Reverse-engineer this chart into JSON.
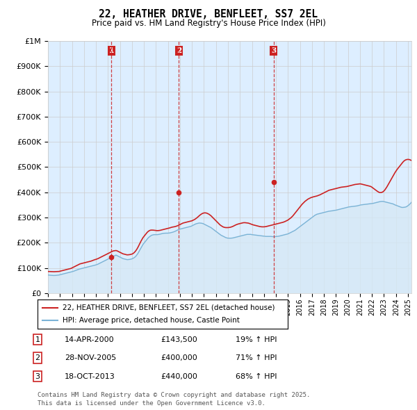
{
  "title": "22, HEATHER DRIVE, BENFLEET, SS7 2EL",
  "subtitle": "Price paid vs. HM Land Registry's House Price Index (HPI)",
  "footer": "Contains HM Land Registry data © Crown copyright and database right 2025.\nThis data is licensed under the Open Government Licence v3.0.",
  "legend_line1": "22, HEATHER DRIVE, BENFLEET, SS7 2EL (detached house)",
  "legend_line2": "HPI: Average price, detached house, Castle Point",
  "transactions": [
    {
      "num": 1,
      "date": "14-APR-2000",
      "price": "£143,500",
      "pct": "19% ↑ HPI"
    },
    {
      "num": 2,
      "date": "28-NOV-2005",
      "price": "£400,000",
      "pct": "71% ↑ HPI"
    },
    {
      "num": 3,
      "date": "18-OCT-2013",
      "price": "£440,000",
      "pct": "68% ↑ HPI"
    }
  ],
  "sale_dates": [
    2000.29,
    2005.91,
    2013.8
  ],
  "sale_prices": [
    143500,
    400000,
    440000
  ],
  "hpi_line_color": "#7ab3d6",
  "hpi_fill_color": "#d6e8f5",
  "price_line_color": "#cc2222",
  "vline_color": "#cc2222",
  "grid_color": "#cccccc",
  "bg_color": "#ffffff",
  "plot_bg_color": "#ddeeff",
  "ylim": [
    0,
    1000000
  ],
  "xlim_start": 1995.0,
  "xlim_end": 2025.3,
  "hpi_monthly": [
    72000,
    71500,
    71200,
    70800,
    70500,
    70200,
    70000,
    70200,
    70500,
    71000,
    71500,
    72000,
    73000,
    74000,
    75000,
    76000,
    77000,
    78000,
    79000,
    80000,
    81000,
    82000,
    83000,
    84000,
    85000,
    86000,
    87500,
    89000,
    90500,
    92000,
    93500,
    95000,
    96000,
    97000,
    98000,
    99000,
    100000,
    101000,
    102000,
    103000,
    104000,
    105000,
    106000,
    107000,
    108000,
    109000,
    110000,
    111000,
    112000,
    113500,
    115000,
    117000,
    119000,
    121000,
    123000,
    125000,
    127000,
    129000,
    131000,
    133000,
    135000,
    137000,
    139000,
    141000,
    143000,
    145000,
    147000,
    149000,
    151000,
    149000,
    147000,
    145000,
    143000,
    141000,
    139000,
    137000,
    136000,
    135000,
    134000,
    133000,
    133000,
    133500,
    134000,
    135000,
    136000,
    138000,
    140000,
    143000,
    147000,
    152000,
    158000,
    165000,
    172000,
    179000,
    186000,
    193000,
    198000,
    203000,
    208000,
    213000,
    218000,
    222000,
    225000,
    228000,
    230000,
    231000,
    232000,
    232000,
    232000,
    232000,
    232500,
    233000,
    234000,
    235000,
    236000,
    237000,
    237500,
    237800,
    238000,
    238000,
    238000,
    238500,
    239000,
    240000,
    241000,
    242000,
    243500,
    245000,
    247000,
    249000,
    251000,
    253000,
    254000,
    255000,
    256000,
    257000,
    258000,
    259000,
    260000,
    261000,
    262000,
    263000,
    264000,
    265000,
    267000,
    269000,
    271000,
    273000,
    275000,
    276000,
    277000,
    278000,
    278000,
    277500,
    277000,
    276000,
    274000,
    272000,
    270000,
    268000,
    266000,
    264000,
    262000,
    260000,
    257000,
    254000,
    251000,
    248000,
    245000,
    242000,
    239000,
    236000,
    233000,
    230000,
    228000,
    226000,
    224000,
    222000,
    220000,
    219000,
    218000,
    218000,
    218000,
    218000,
    218500,
    219000,
    220000,
    221000,
    222000,
    223000,
    224000,
    225000,
    226000,
    227000,
    228000,
    229000,
    230000,
    231000,
    232000,
    233000,
    233000,
    233000,
    233000,
    233000,
    232000,
    231500,
    231000,
    230500,
    230000,
    229500,
    229000,
    228500,
    228000,
    227500,
    227000,
    226500,
    226000,
    225500,
    225000,
    225000,
    225000,
    225000,
    225000,
    225000,
    224500,
    224000,
    224000,
    224000,
    224500,
    225000,
    225500,
    226000,
    227000,
    228000,
    229000,
    230000,
    231000,
    232000,
    233000,
    234000,
    235000,
    237000,
    239000,
    241000,
    243000,
    245000,
    247000,
    249000,
    252000,
    255000,
    258000,
    261000,
    264000,
    267000,
    270000,
    273000,
    276000,
    279000,
    282000,
    285000,
    288000,
    291000,
    294000,
    297000,
    300000,
    303000,
    306000,
    309000,
    311000,
    313000,
    314000,
    315000,
    316000,
    317000,
    318000,
    319000,
    320000,
    321000,
    322000,
    323000,
    324000,
    325000,
    325500,
    326000,
    326500,
    327000,
    328000,
    328500,
    329000,
    330000,
    331000,
    332000,
    333000,
    334000,
    335000,
    336000,
    337000,
    338000,
    339000,
    340000,
    341000,
    342000,
    342500,
    343000,
    343500,
    344000,
    344500,
    345000,
    345500,
    346000,
    347000,
    348000,
    349000,
    350000,
    350500,
    351000,
    351500,
    352000,
    352500,
    353000,
    353500,
    354000,
    354500,
    355000,
    355500,
    356000,
    357000,
    358000,
    359000,
    360000,
    361000,
    362000,
    363000,
    363500,
    364000,
    364000,
    363000,
    362000,
    361000,
    360000,
    359000,
    358000,
    357000,
    356000,
    355000,
    354000,
    352000,
    350000,
    348500,
    347000,
    345500,
    344000,
    342500,
    341000,
    340000,
    340000,
    340500,
    341000,
    342000,
    344000,
    347000,
    350000,
    354000,
    358000,
    363000,
    368000,
    374000,
    380000,
    386000,
    392000,
    398000,
    404000,
    410000,
    416000,
    422000,
    428000,
    434000,
    440000,
    445000,
    449000,
    452000,
    454000,
    456000,
    457000,
    458000,
    459000,
    460000,
    461000,
    462000,
    463000,
    464000,
    465000,
    466000,
    467000,
    468000,
    469000,
    470000,
    470500,
    470800,
    471000,
    470800,
    470500,
    470000,
    469500,
    469000,
    468500,
    468000,
    467500,
    466000,
    465000,
    464000,
    463000,
    462000,
    461500,
    461000,
    460500,
    460000,
    460000,
    460500,
    461000,
    462000,
    463000,
    464000,
    466000,
    468000,
    470000,
    473000,
    476000,
    479000,
    481000,
    482000,
    481000,
    479000,
    477000,
    476000,
    475000,
    474500,
    474000,
    474000,
    474000,
    474000,
    474500,
    475000,
    476000,
    477000,
    478000,
    479000,
    480000,
    481000,
    481000
  ],
  "price_monthly": [
    86000,
    85800,
    85600,
    85400,
    85200,
    85000,
    85000,
    85200,
    85400,
    85600,
    85800,
    86000,
    87000,
    88000,
    89000,
    90000,
    91000,
    92000,
    93000,
    94000,
    95000,
    96000,
    97000,
    98000,
    100000,
    102000,
    104000,
    106000,
    108000,
    110000,
    112000,
    114000,
    116000,
    117000,
    118000,
    119000,
    120000,
    121000,
    122000,
    123000,
    124000,
    125000,
    126000,
    127000,
    128500,
    130000,
    131500,
    133000,
    134000,
    135500,
    137000,
    139000,
    141000,
    143000,
    145000,
    147000,
    149000,
    151000,
    153000,
    155000,
    157000,
    159000,
    161000,
    163000,
    165000,
    167000,
    168000,
    168500,
    169000,
    168000,
    166000,
    164000,
    162000,
    160000,
    158000,
    156000,
    155000,
    154000,
    153000,
    152000,
    152000,
    152500,
    153000,
    154000,
    155000,
    157000,
    160000,
    164000,
    169000,
    175000,
    182000,
    190000,
    198000,
    206000,
    213000,
    220000,
    225000,
    230000,
    235000,
    240000,
    244000,
    247000,
    249000,
    250000,
    250000,
    250000,
    249500,
    249000,
    248500,
    248000,
    248000,
    248500,
    249000,
    250000,
    251000,
    252000,
    253000,
    254000,
    255000,
    256000,
    257000,
    258000,
    259000,
    260500,
    261500,
    262500,
    263000,
    264000,
    265000,
    266500,
    268000,
    270000,
    272000,
    274000,
    276000,
    278000,
    279000,
    280000,
    281000,
    282000,
    283000,
    284000,
    285000,
    286000,
    287000,
    289000,
    291000,
    293000,
    296000,
    299000,
    302500,
    306000,
    309500,
    312500,
    315000,
    317000,
    318000,
    318500,
    318000,
    317000,
    315000,
    313000,
    310000,
    307000,
    303000,
    299000,
    295000,
    291000,
    287000,
    283000,
    279000,
    275000,
    271000,
    268000,
    265500,
    263000,
    261500,
    260500,
    260000,
    260000,
    260000,
    260500,
    261000,
    262000,
    263500,
    265000,
    267000,
    269000,
    271000,
    272500,
    274000,
    275000,
    276000,
    277000,
    278000,
    279000,
    279500,
    279500,
    279000,
    278500,
    278000,
    277000,
    275500,
    274000,
    272500,
    271000,
    270000,
    269000,
    268000,
    267000,
    266000,
    265000,
    264000,
    263500,
    263000,
    263000,
    263000,
    263500,
    264000,
    265000,
    266000,
    267000,
    268000,
    269000,
    270000,
    271000,
    272000,
    273000,
    274000,
    275000,
    276000,
    277000,
    278000,
    279000,
    280000,
    281000,
    282500,
    284000,
    286000,
    288000,
    290000,
    293000,
    296000,
    299000,
    303000,
    307000,
    312000,
    317000,
    322000,
    327000,
    332000,
    337000,
    342000,
    347000,
    352000,
    356000,
    360000,
    364000,
    367000,
    370000,
    373000,
    375000,
    377000,
    379000,
    380000,
    381500,
    382500,
    383500,
    384500,
    385500,
    387000,
    388500,
    390000,
    392000,
    394000,
    396000,
    398000,
    400000,
    402000,
    404000,
    406000,
    408000,
    409000,
    410000,
    411000,
    412000,
    413000,
    414000,
    415000,
    416000,
    417000,
    418000,
    419000,
    420000,
    420500,
    421000,
    421500,
    422000,
    422500,
    423000,
    424000,
    425000,
    426000,
    427000,
    428000,
    429000,
    430000,
    431000,
    431500,
    432000,
    432500,
    433000,
    433500,
    433000,
    432000,
    431000,
    430000,
    429000,
    428000,
    427000,
    426000,
    425000,
    424000,
    422500,
    420000,
    417000,
    414000,
    411000,
    408000,
    405000,
    402500,
    400000,
    399000,
    399000,
    400000,
    402000,
    405500,
    410000,
    416000,
    422000,
    429000,
    436000,
    443000,
    450000,
    457000,
    464000,
    471000,
    478000,
    484000,
    490000,
    495000,
    500000,
    505000,
    510000,
    515000,
    520000,
    524000,
    527000,
    529000,
    530000,
    530500,
    530000,
    529000,
    527000,
    525000,
    522000,
    519000,
    516000,
    513000,
    510000,
    507500,
    505000,
    503500,
    502000,
    501000,
    500000,
    500000,
    500500,
    501000,
    502500,
    504000,
    506000,
    508500,
    511000,
    513000,
    515000,
    516000,
    517000,
    518000,
    519000,
    520000,
    521000,
    522000,
    523000,
    524000,
    525000,
    526000,
    527000,
    528000,
    529000,
    530000,
    531000
  ],
  "month_years_start": 1995.0,
  "month_years_end": 2025.25,
  "n_months_hpi": 446,
  "n_months_price": 446
}
